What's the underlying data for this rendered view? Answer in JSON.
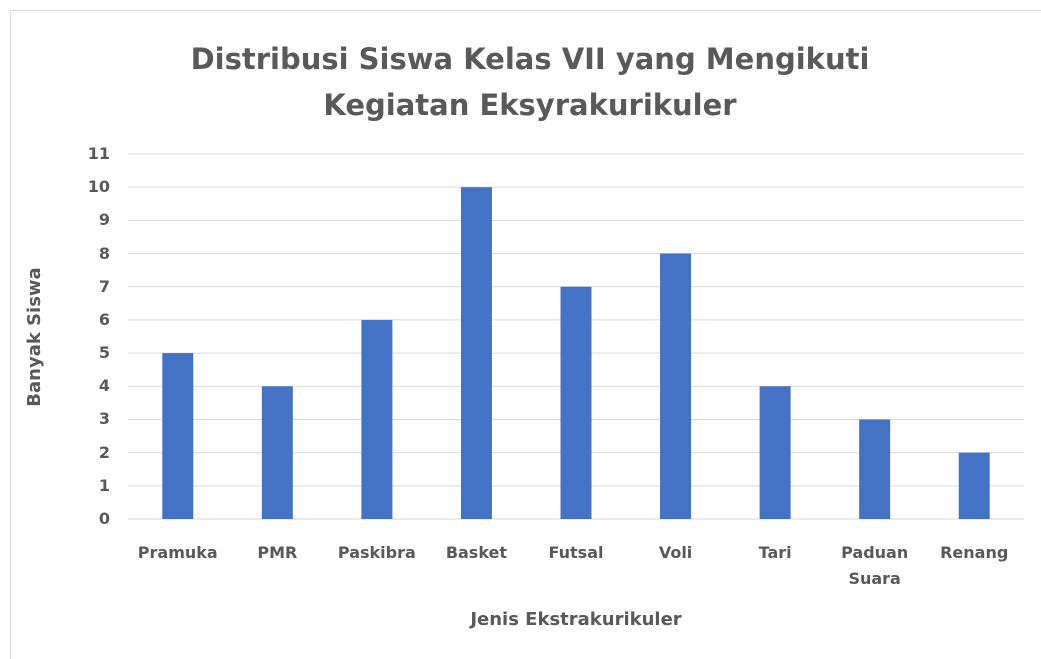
{
  "chart_data": {
    "type": "bar",
    "title": "Distribusi Siswa Kelas VII yang Mengikuti Kegiatan Eksyrakurikuler",
    "x_label": "Jenis Ekstrakurikuler",
    "y_label": "Banyak Siswa",
    "categories": [
      "Pramuka",
      "PMR",
      "Paskibra",
      "Basket",
      "Futsal",
      "Voli",
      "Tari",
      "Paduan Suara",
      "Renang"
    ],
    "values": [
      5,
      4,
      6,
      10,
      7,
      8,
      4,
      3,
      2
    ],
    "color": "#4472c4",
    "ylim": [
      0,
      11
    ],
    "yticks": [
      0,
      1,
      2,
      3,
      4,
      5,
      6,
      7,
      8,
      9,
      10,
      11
    ],
    "grid": true
  }
}
